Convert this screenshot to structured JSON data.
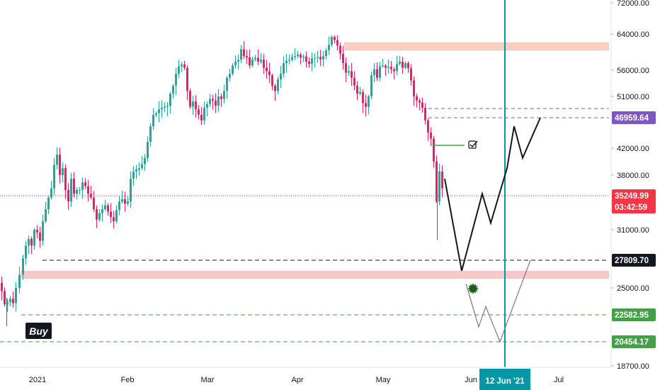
{
  "chart_data": {
    "type": "candlestick",
    "x_ticks": [
      "2021",
      "Feb",
      "Mar",
      "Apr",
      "May",
      "Jun",
      "Jul"
    ],
    "y_ticks": [
      "72000.00",
      "64000.00",
      "56000.00",
      "51000.00",
      "42000.00",
      "38000.00",
      "31000.00",
      "25000.00",
      "18700.00"
    ],
    "price_tags": [
      {
        "label": "46959.64",
        "color": "#7e57c2",
        "text_color": "#ffffff"
      },
      {
        "label": "35249.99",
        "color": "#f23645",
        "text_color": "#ffffff"
      },
      {
        "label": "03:42:59",
        "color": "#f23645",
        "text_color": "#ffffff"
      },
      {
        "label": "27809.70",
        "color": "#131722",
        "text_color": "#ffffff"
      },
      {
        "label": "22582.95",
        "color": "#43a047",
        "text_color": "#ffffff"
      },
      {
        "label": "20454.17",
        "color": "#43a047",
        "text_color": "#ffffff"
      }
    ],
    "date_marker": {
      "label": "12 Jun '21",
      "color": "#0097a7"
    },
    "annotation": {
      "label": "Buy",
      "color": "#131722"
    },
    "levels": {
      "current": 35249.99,
      "purple": 46959.64,
      "black": 27809.7,
      "green_1": 22582.95,
      "green_2": 20454.17
    },
    "zones": [
      {
        "name": "resistance",
        "from": 60200,
        "to": 62100,
        "color": "#f7cfc0"
      },
      {
        "name": "support",
        "from": 25900,
        "to": 26700,
        "color": "#f3c8c6"
      }
    ],
    "up_color": "#26a69a",
    "down_color": "#e91e63",
    "projection": {
      "primary_path": [
        [
          37500,
          0
        ],
        [
          26700,
          1
        ],
        [
          35500,
          2
        ],
        [
          31800,
          3
        ],
        [
          39000,
          4
        ],
        [
          45500,
          5
        ],
        [
          40500,
          6
        ],
        [
          46959.64,
          7
        ]
      ],
      "alt_path": [
        [
          25400,
          0
        ],
        [
          21600,
          1
        ],
        [
          23300,
          2
        ],
        [
          20454.17,
          3
        ],
        [
          27809.7,
          4
        ]
      ]
    }
  }
}
